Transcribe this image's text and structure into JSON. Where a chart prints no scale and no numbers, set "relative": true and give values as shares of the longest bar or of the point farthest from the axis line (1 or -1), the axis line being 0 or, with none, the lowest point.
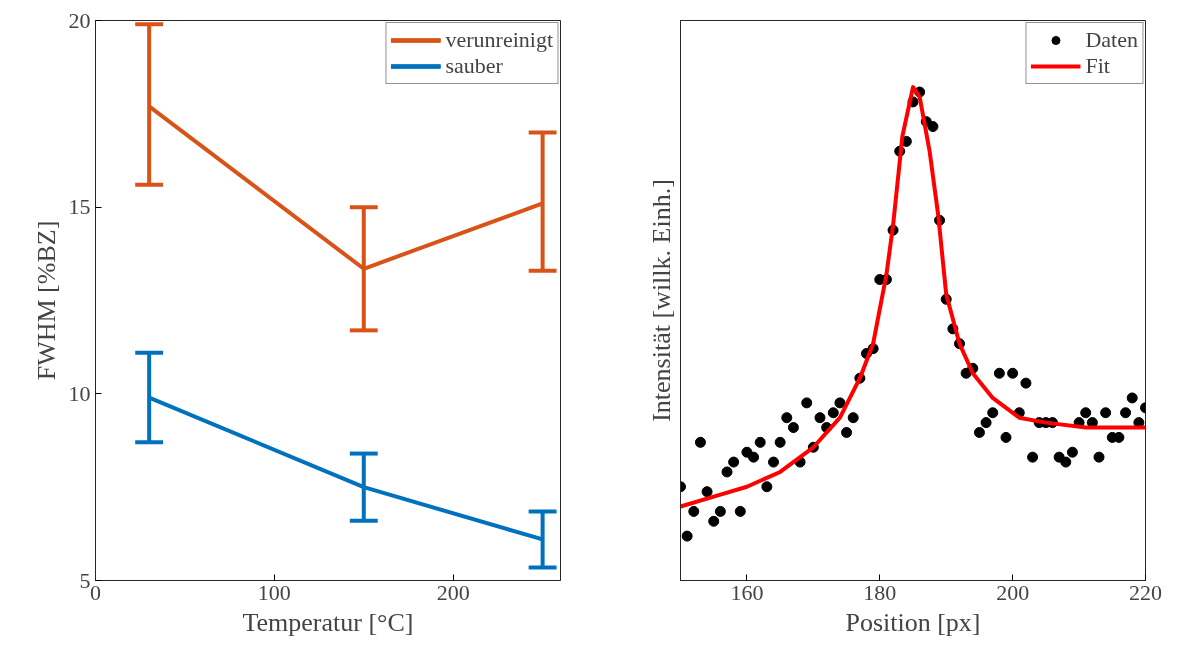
{
  "chart_data": [
    {
      "type": "line",
      "xlabel": "Temperatur [°C]",
      "ylabel": "FWHM [%BZ]",
      "x": [
        30,
        150,
        250
      ],
      "xlim": [
        0,
        260
      ],
      "xticks": [
        0,
        100,
        200
      ],
      "ylim": [
        5,
        20
      ],
      "yticks": [
        5,
        10,
        15,
        20
      ],
      "grid": false,
      "legend": "top right",
      "series": [
        {
          "name": "verunreinigt",
          "color": "#d95319",
          "values": [
            17.7,
            13.35,
            15.1
          ],
          "errors": [
            [
              15.6,
              19.9
            ],
            [
              11.7,
              15.0
            ],
            [
              13.3,
              17.0
            ]
          ]
        },
        {
          "name": "sauber",
          "color": "#0072bd",
          "values": [
            9.9,
            7.5,
            6.1
          ],
          "errors": [
            [
              8.7,
              11.1
            ],
            [
              6.6,
              8.4
            ],
            [
              5.35,
              6.85
            ]
          ]
        }
      ]
    },
    {
      "type": "scatter",
      "xlabel": "Position [px]",
      "ylabel": "Intensität [willk. Einh.]",
      "relative": true,
      "xlim": [
        150,
        220
      ],
      "xticks": [
        160,
        180,
        200,
        220
      ],
      "grid": false,
      "legend": "top right",
      "x": [
        150,
        151,
        152,
        153,
        154,
        155,
        156,
        157,
        158,
        159,
        160,
        161,
        162,
        163,
        164,
        165,
        166,
        167,
        168,
        169,
        170,
        171,
        172,
        173,
        174,
        175,
        176,
        177,
        178,
        179,
        180,
        181,
        182,
        183,
        184,
        185,
        186,
        187,
        188,
        189,
        190,
        191,
        192,
        193,
        194,
        195,
        196,
        197,
        198,
        199,
        200,
        201,
        202,
        203,
        204,
        205,
        206,
        207,
        208,
        209,
        210,
        211,
        212,
        213,
        214,
        215,
        216,
        217,
        218,
        219,
        220
      ],
      "series": [
        {
          "name": "Daten",
          "type": "scatter",
          "marker": "circle",
          "color": "#000000",
          "values": [
            0.19,
            0.09,
            0.14,
            0.28,
            0.18,
            0.12,
            0.14,
            0.22,
            0.24,
            0.14,
            0.26,
            0.25,
            0.28,
            0.19,
            0.24,
            0.28,
            0.33,
            0.31,
            0.24,
            0.36,
            0.27,
            0.33,
            0.31,
            0.34,
            0.36,
            0.3,
            0.33,
            0.41,
            0.46,
            0.47,
            0.61,
            0.61,
            0.71,
            0.87,
            0.89,
            0.97,
            0.99,
            0.93,
            0.92,
            0.73,
            0.57,
            0.51,
            0.48,
            0.42,
            0.43,
            0.3,
            0.32,
            0.34,
            0.42,
            0.29,
            0.42,
            0.34,
            0.4,
            0.25,
            0.32,
            0.32,
            0.32,
            0.25,
            0.24,
            0.26,
            0.32,
            0.34,
            0.32,
            0.25,
            0.34,
            0.29,
            0.29,
            0.34,
            0.37,
            0.32,
            0.35
          ]
        },
        {
          "name": "Fit",
          "type": "line",
          "color": "#ff0000",
          "x": [
            150,
            155,
            160,
            165,
            170,
            174,
            177,
            179,
            181,
            182,
            183.4,
            185,
            186,
            187.5,
            188.8,
            190,
            192,
            194,
            197,
            201,
            205,
            211,
            220
          ],
          "values": [
            0.15,
            0.17,
            0.19,
            0.22,
            0.27,
            0.33,
            0.41,
            0.48,
            0.62,
            0.72,
            0.9,
            1.0,
            0.98,
            0.87,
            0.74,
            0.58,
            0.48,
            0.42,
            0.37,
            0.33,
            0.32,
            0.31,
            0.31
          ]
        }
      ]
    }
  ]
}
